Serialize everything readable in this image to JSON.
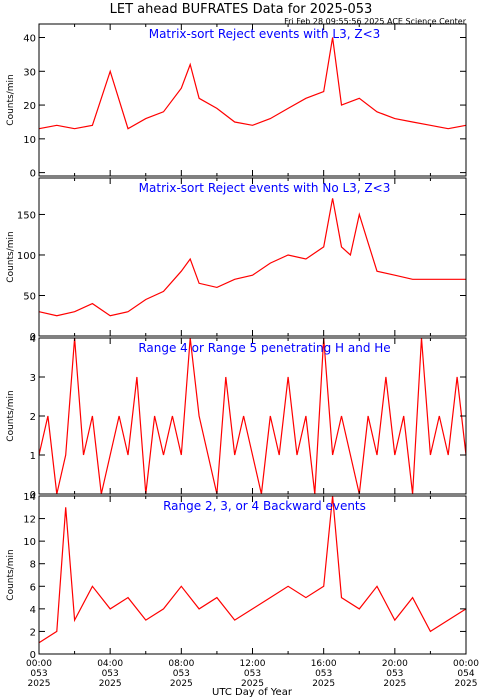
{
  "figure": {
    "title": "LET ahead BUFRATES Data for 2025-053",
    "timestamp": "Fri Feb 28 09:55:56 2025 ACE Science Center",
    "xlabel": "UTC Day of Year",
    "x_ticks": [
      {
        "time": "00:00",
        "day": "053",
        "year": "2025"
      },
      {
        "time": "04:00",
        "day": "053",
        "year": "2025"
      },
      {
        "time": "08:00",
        "day": "053",
        "year": "2025"
      },
      {
        "time": "12:00",
        "day": "053",
        "year": "2025"
      },
      {
        "time": "16:00",
        "day": "053",
        "year": "2025"
      },
      {
        "time": "20:00",
        "day": "053",
        "year": "2025"
      },
      {
        "time": "00:00",
        "day": "054",
        "year": "2025"
      }
    ],
    "colors": {
      "series": "#ff0000",
      "label": "#0000ff",
      "axis": "#000000"
    }
  },
  "chart_data": [
    {
      "type": "line",
      "title": "Matrix-sort Reject events with L3, Z<3",
      "ylabel": "Counts/min",
      "xlim": [
        0,
        24
      ],
      "ylim": [
        -1,
        44
      ],
      "yticks": [
        0,
        10,
        20,
        30,
        40
      ],
      "series": [
        {
          "x": [
            0,
            1,
            2,
            3,
            4,
            5,
            6,
            7,
            8,
            8.5,
            9,
            10,
            11,
            12,
            13,
            14,
            15,
            16,
            16.5,
            17,
            18,
            19,
            20,
            21,
            22,
            23,
            24
          ],
          "values": [
            13,
            14,
            13,
            14,
            30,
            13,
            16,
            18,
            25,
            32,
            22,
            19,
            15,
            14,
            16,
            19,
            22,
            24,
            40,
            20,
            22,
            18,
            16,
            15,
            14,
            13,
            14
          ]
        }
      ]
    },
    {
      "type": "line",
      "title": "Matrix-sort Reject events with No L3, Z<3",
      "ylabel": "Counts/min",
      "xlim": [
        0,
        24
      ],
      "ylim": [
        0,
        195
      ],
      "yticks": [
        0,
        50,
        100,
        150
      ],
      "series": [
        {
          "x": [
            0,
            1,
            2,
            3,
            4,
            5,
            6,
            7,
            8,
            8.5,
            9,
            10,
            11,
            12,
            13,
            14,
            15,
            16,
            16.5,
            17,
            17.5,
            18,
            18.5,
            19,
            20,
            21,
            22,
            23,
            24
          ],
          "values": [
            30,
            25,
            30,
            40,
            25,
            30,
            45,
            55,
            80,
            95,
            65,
            60,
            70,
            75,
            90,
            100,
            95,
            110,
            170,
            110,
            100,
            150,
            115,
            80,
            75,
            70,
            70,
            70,
            70
          ]
        }
      ]
    },
    {
      "type": "line",
      "title": "Range 4 or Range 5 penetrating H and He",
      "ylabel": "Counts/min",
      "xlim": [
        0,
        24
      ],
      "ylim": [
        0,
        4
      ],
      "yticks": [
        0,
        1,
        2,
        3,
        4
      ],
      "series": [
        {
          "x": [
            0,
            0.5,
            1,
            1.5,
            2,
            2.5,
            3,
            3.5,
            4,
            4.5,
            5,
            5.5,
            6,
            6.5,
            7,
            7.5,
            8,
            8.5,
            9,
            9.5,
            10,
            10.5,
            11,
            11.5,
            12,
            12.5,
            13,
            13.5,
            14,
            14.5,
            15,
            15.5,
            16,
            16.5,
            17,
            17.5,
            18,
            18.5,
            19,
            19.5,
            20,
            20.5,
            21,
            21.5,
            22,
            22.5,
            23,
            23.5,
            24
          ],
          "values": [
            1,
            2,
            0,
            1,
            4,
            1,
            2,
            0,
            1,
            2,
            1,
            3,
            0,
            2,
            1,
            2,
            1,
            4,
            2,
            1,
            0,
            3,
            1,
            2,
            1,
            0,
            2,
            1,
            3,
            1,
            2,
            0,
            4,
            1,
            2,
            1,
            0,
            2,
            1,
            3,
            1,
            2,
            0,
            4,
            1,
            2,
            1,
            3,
            1
          ]
        }
      ]
    },
    {
      "type": "line",
      "title": "Range 2, 3, or 4 Backward events",
      "ylabel": "Counts/min",
      "xlim": [
        0,
        24
      ],
      "ylim": [
        0,
        14
      ],
      "yticks": [
        0,
        2,
        4,
        6,
        8,
        10,
        12,
        14
      ],
      "series": [
        {
          "x": [
            0,
            1,
            1.5,
            2,
            3,
            4,
            5,
            6,
            7,
            8,
            9,
            10,
            11,
            12,
            13,
            14,
            15,
            16,
            16.5,
            17,
            18,
            19,
            20,
            21,
            22,
            23,
            24
          ],
          "values": [
            1,
            2,
            13,
            3,
            6,
            4,
            5,
            3,
            4,
            6,
            4,
            5,
            3,
            4,
            5,
            6,
            5,
            6,
            14,
            5,
            4,
            6,
            3,
            5,
            2,
            3,
            4
          ]
        }
      ]
    }
  ]
}
